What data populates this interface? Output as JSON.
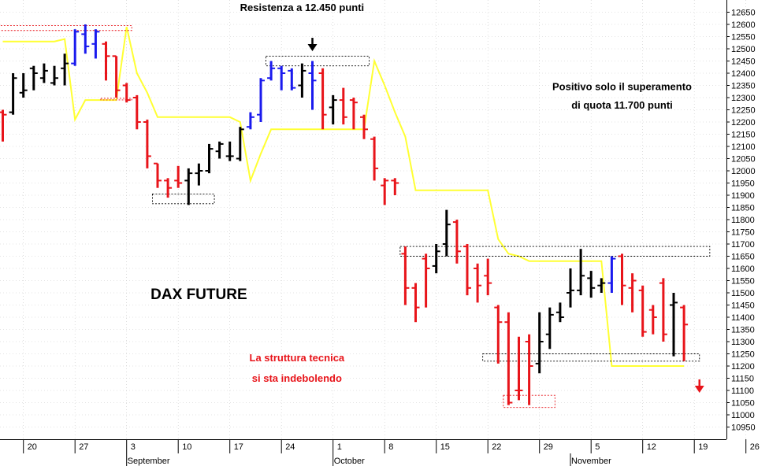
{
  "chart_data": {
    "type": "bar",
    "subtype": "ohlc",
    "title": "DAX FUTURE",
    "ylim": [
      10900,
      12700
    ],
    "y_axis_position": "right",
    "y_ticks": [
      10950,
      11000,
      11050,
      11100,
      11150,
      11200,
      11250,
      11300,
      11350,
      11400,
      11450,
      11500,
      11550,
      11600,
      11650,
      11700,
      11750,
      11800,
      11850,
      11900,
      11950,
      12000,
      12050,
      12100,
      12150,
      12200,
      12250,
      12300,
      12350,
      12400,
      12450,
      12500,
      12550,
      12600,
      12650
    ],
    "x_ticks": [
      {
        "label": "20",
        "i": 2
      },
      {
        "label": "27",
        "i": 7
      },
      {
        "label": "3",
        "i": 12
      },
      {
        "label": "10",
        "i": 17
      },
      {
        "label": "17",
        "i": 22
      },
      {
        "label": "24",
        "i": 27
      },
      {
        "label": "1",
        "i": 32
      },
      {
        "label": "8",
        "i": 37
      },
      {
        "label": "15",
        "i": 42
      },
      {
        "label": "22",
        "i": 47
      },
      {
        "label": "29",
        "i": 52
      },
      {
        "label": "5",
        "i": 57
      },
      {
        "label": "12",
        "i": 62
      },
      {
        "label": "19",
        "i": 67
      },
      {
        "label": "26",
        "i": 72
      }
    ],
    "months": [
      {
        "label": "September",
        "i": 12
      },
      {
        "label": "October",
        "i": 32
      },
      {
        "label": "November",
        "i": 55
      }
    ],
    "colors": {
      "red": "#e8141a",
      "black": "#000000",
      "blue": "#1a1aee",
      "trailing_stop": "#ffff33",
      "zone": "#000000",
      "zone_red": "#e8141a"
    },
    "bars": [
      {
        "o": 12240,
        "h": 12250,
        "l": 12120,
        "c": 12230,
        "color": "red"
      },
      {
        "o": 12240,
        "h": 12400,
        "l": 12230,
        "c": 12380,
        "color": "black"
      },
      {
        "o": 12320,
        "h": 12400,
        "l": 12300,
        "c": 12330,
        "color": "black"
      },
      {
        "o": 12420,
        "h": 12430,
        "l": 12330,
        "c": 12400,
        "color": "black"
      },
      {
        "o": 12380,
        "h": 12440,
        "l": 12360,
        "c": 12410,
        "color": "black"
      },
      {
        "o": 12360,
        "h": 12430,
        "l": 12350,
        "c": 12380,
        "color": "black"
      },
      {
        "o": 12420,
        "h": 12480,
        "l": 12350,
        "c": 12440,
        "color": "black"
      },
      {
        "o": 12440,
        "h": 12580,
        "l": 12430,
        "c": 12570,
        "color": "blue"
      },
      {
        "o": 12560,
        "h": 12600,
        "l": 12480,
        "c": 12510,
        "color": "blue"
      },
      {
        "o": 12520,
        "h": 12580,
        "l": 12460,
        "c": 12570,
        "color": "blue"
      },
      {
        "o": 12520,
        "h": 12530,
        "l": 12370,
        "c": 12470,
        "color": "red"
      },
      {
        "o": 12470,
        "h": 12470,
        "l": 12300,
        "c": 12330,
        "color": "red"
      },
      {
        "o": 12350,
        "h": 12360,
        "l": 12280,
        "c": 12290,
        "color": "red"
      },
      {
        "o": 12300,
        "h": 12310,
        "l": 12170,
        "c": 12200,
        "color": "red"
      },
      {
        "o": 12200,
        "h": 12210,
        "l": 12010,
        "c": 12060,
        "color": "red"
      },
      {
        "o": 12030,
        "h": 12030,
        "l": 11930,
        "c": 11960,
        "color": "red"
      },
      {
        "o": 11960,
        "h": 11970,
        "l": 11890,
        "c": 11930,
        "color": "red"
      },
      {
        "o": 11960,
        "h": 12020,
        "l": 11930,
        "c": 11950,
        "color": "red"
      },
      {
        "o": 11960,
        "h": 12010,
        "l": 11860,
        "c": 11990,
        "color": "black"
      },
      {
        "o": 11990,
        "h": 12030,
        "l": 11940,
        "c": 12000,
        "color": "black"
      },
      {
        "o": 12000,
        "h": 12110,
        "l": 11990,
        "c": 12090,
        "color": "black"
      },
      {
        "o": 12080,
        "h": 12120,
        "l": 12050,
        "c": 12110,
        "color": "black"
      },
      {
        "o": 12060,
        "h": 12120,
        "l": 12040,
        "c": 12060,
        "color": "black"
      },
      {
        "o": 12050,
        "h": 12180,
        "l": 12040,
        "c": 12170,
        "color": "black"
      },
      {
        "o": 12180,
        "h": 12240,
        "l": 12170,
        "c": 12220,
        "color": "blue"
      },
      {
        "o": 12230,
        "h": 12380,
        "l": 12200,
        "c": 12370,
        "color": "blue"
      },
      {
        "o": 12380,
        "h": 12450,
        "l": 12370,
        "c": 12420,
        "color": "blue"
      },
      {
        "o": 12420,
        "h": 12430,
        "l": 12330,
        "c": 12400,
        "color": "blue"
      },
      {
        "o": 12410,
        "h": 12420,
        "l": 12330,
        "c": 12340,
        "color": "blue"
      },
      {
        "o": 12350,
        "h": 12440,
        "l": 12300,
        "c": 12410,
        "color": "black"
      },
      {
        "o": 12400,
        "h": 12450,
        "l": 12250,
        "c": 12370,
        "color": "blue"
      },
      {
        "o": 12400,
        "h": 12420,
        "l": 12170,
        "c": 12230,
        "color": "red"
      },
      {
        "o": 12260,
        "h": 12310,
        "l": 12190,
        "c": 12290,
        "color": "black"
      },
      {
        "o": 12290,
        "h": 12340,
        "l": 12190,
        "c": 12220,
        "color": "red"
      },
      {
        "o": 12290,
        "h": 12300,
        "l": 12170,
        "c": 12280,
        "color": "red"
      },
      {
        "o": 12220,
        "h": 12230,
        "l": 12130,
        "c": 12170,
        "color": "red"
      },
      {
        "o": 12130,
        "h": 12140,
        "l": 11960,
        "c": 12010,
        "color": "red"
      },
      {
        "o": 11940,
        "h": 11970,
        "l": 11860,
        "c": 11960,
        "color": "red"
      },
      {
        "o": 11960,
        "h": 11970,
        "l": 11900,
        "c": 11950,
        "color": "red"
      },
      {
        "o": 11660,
        "h": 11690,
        "l": 11450,
        "c": 11520,
        "color": "red"
      },
      {
        "o": 11520,
        "h": 11540,
        "l": 11380,
        "c": 11440,
        "color": "red"
      },
      {
        "o": 11640,
        "h": 11660,
        "l": 11440,
        "c": 11600,
        "color": "red"
      },
      {
        "o": 11610,
        "h": 11700,
        "l": 11580,
        "c": 11670,
        "color": "black"
      },
      {
        "o": 11700,
        "h": 11840,
        "l": 11650,
        "c": 11780,
        "color": "black"
      },
      {
        "o": 11790,
        "h": 11800,
        "l": 11620,
        "c": 11670,
        "color": "red"
      },
      {
        "o": 11690,
        "h": 11700,
        "l": 11490,
        "c": 11520,
        "color": "red"
      },
      {
        "o": 11600,
        "h": 11620,
        "l": 11460,
        "c": 11530,
        "color": "red"
      },
      {
        "o": 11570,
        "h": 11640,
        "l": 11490,
        "c": 11540,
        "color": "red"
      },
      {
        "o": 11440,
        "h": 11450,
        "l": 11210,
        "c": 11380,
        "color": "red"
      },
      {
        "o": 11380,
        "h": 11420,
        "l": 11040,
        "c": 11050,
        "color": "red"
      },
      {
        "o": 11100,
        "h": 11320,
        "l": 11060,
        "c": 11100,
        "color": "red"
      },
      {
        "o": 11300,
        "h": 11330,
        "l": 11040,
        "c": 11200,
        "color": "red"
      },
      {
        "o": 11210,
        "h": 11420,
        "l": 11170,
        "c": 11300,
        "color": "black"
      },
      {
        "o": 11330,
        "h": 11440,
        "l": 11270,
        "c": 11410,
        "color": "black"
      },
      {
        "o": 11420,
        "h": 11460,
        "l": 11380,
        "c": 11400,
        "color": "black"
      },
      {
        "o": 11500,
        "h": 11600,
        "l": 11440,
        "c": 11510,
        "color": "black"
      },
      {
        "o": 11510,
        "h": 11680,
        "l": 11490,
        "c": 11570,
        "color": "black"
      },
      {
        "o": 11560,
        "h": 11590,
        "l": 11480,
        "c": 11520,
        "color": "black"
      },
      {
        "o": 11530,
        "h": 11560,
        "l": 11500,
        "c": 11540,
        "color": "black"
      },
      {
        "o": 11540,
        "h": 11650,
        "l": 11500,
        "c": 11640,
        "color": "blue"
      },
      {
        "o": 11650,
        "h": 11660,
        "l": 11450,
        "c": 11530,
        "color": "red"
      },
      {
        "o": 11520,
        "h": 11580,
        "l": 11420,
        "c": 11550,
        "color": "red"
      },
      {
        "o": 11510,
        "h": 11530,
        "l": 11320,
        "c": 11340,
        "color": "red"
      },
      {
        "o": 11430,
        "h": 11450,
        "l": 11330,
        "c": 11400,
        "color": "red"
      },
      {
        "o": 11540,
        "h": 11560,
        "l": 11300,
        "c": 11330,
        "color": "red"
      },
      {
        "o": 11450,
        "h": 11500,
        "l": 11240,
        "c": 11460,
        "color": "black"
      },
      {
        "o": 11440,
        "h": 11450,
        "l": 11220,
        "c": 11370,
        "color": "red"
      }
    ],
    "trailing_stop": [
      [
        0,
        12530
      ],
      [
        1,
        12530
      ],
      [
        2,
        12530
      ],
      [
        3,
        12530
      ],
      [
        4,
        12530
      ],
      [
        5,
        12530
      ],
      [
        6,
        12540
      ],
      [
        7,
        12210
      ],
      [
        8,
        12290
      ],
      [
        9,
        12290
      ],
      [
        10,
        12290
      ],
      [
        11,
        12290
      ],
      [
        12,
        12590
      ],
      [
        13,
        12400
      ],
      [
        14,
        12320
      ],
      [
        15,
        12220
      ],
      [
        16,
        12220
      ],
      [
        17,
        12220
      ],
      [
        18,
        12220
      ],
      [
        19,
        12220
      ],
      [
        20,
        12220
      ],
      [
        21,
        12220
      ],
      [
        22,
        12220
      ],
      [
        23,
        12200
      ],
      [
        24,
        11960
      ],
      [
        25,
        12070
      ],
      [
        26,
        12170
      ],
      [
        27,
        12170
      ],
      [
        28,
        12170
      ],
      [
        29,
        12170
      ],
      [
        30,
        12170
      ],
      [
        31,
        12170
      ],
      [
        32,
        12170
      ],
      [
        33,
        12170
      ],
      [
        34,
        12170
      ],
      [
        35,
        12170
      ],
      [
        36,
        12450
      ],
      [
        37,
        12350
      ],
      [
        38,
        12240
      ],
      [
        39,
        12140
      ],
      [
        40,
        11920
      ],
      [
        41,
        11920
      ],
      [
        42,
        11920
      ],
      [
        43,
        11920
      ],
      [
        44,
        11920
      ],
      [
        45,
        11920
      ],
      [
        46,
        11920
      ],
      [
        47,
        11920
      ],
      [
        48,
        11720
      ],
      [
        49,
        11660
      ],
      [
        50,
        11650
      ],
      [
        51,
        11630
      ],
      [
        52,
        11630
      ],
      [
        53,
        11630
      ],
      [
        54,
        11630
      ],
      [
        55,
        11630
      ],
      [
        56,
        11630
      ],
      [
        57,
        11630
      ],
      [
        58,
        11630
      ],
      [
        59,
        11200
      ],
      [
        60,
        11200
      ],
      [
        61,
        11200
      ],
      [
        62,
        11200
      ],
      [
        63,
        11200
      ],
      [
        64,
        11200
      ],
      [
        65,
        11200
      ],
      [
        66,
        11200
      ]
    ],
    "zones": [
      {
        "i0": -0.5,
        "i1": 12.5,
        "y0": 12575,
        "y1": 12595,
        "color": "red"
      },
      {
        "i0": 9.5,
        "i1": 12.5,
        "y0": 12293,
        "y1": 12297,
        "color": "red"
      },
      {
        "i0": 14.5,
        "i1": 20.5,
        "y0": 11865,
        "y1": 11905,
        "color": "black"
      },
      {
        "i0": 25.5,
        "i1": 35.5,
        "y0": 12430,
        "y1": 12470,
        "color": "black"
      },
      {
        "i0": 38.5,
        "i1": 68.5,
        "y0": 11650,
        "y1": 11690,
        "color": "black"
      },
      {
        "i0": 46.5,
        "i1": 67.5,
        "y0": 11220,
        "y1": 11250,
        "color": "black"
      },
      {
        "i0": 48.5,
        "i1": 53.5,
        "y0": 11030,
        "y1": 11080,
        "color": "red"
      }
    ],
    "annotations": [
      {
        "text": "Resistenza a 12.450 punti",
        "i": 29,
        "y": 12655,
        "color": "black"
      },
      {
        "text": "Positivo solo il superamento",
        "i": 60,
        "y": 12330,
        "color": "black"
      },
      {
        "text": "di quota 11.700 punti",
        "i": 60,
        "y": 12255,
        "color": "black"
      },
      {
        "text": "La struttura tecnica",
        "i": 28.5,
        "y": 11220,
        "color": "red"
      },
      {
        "text": "si sta indebolendo",
        "i": 28.5,
        "y": 11135,
        "color": "red"
      }
    ],
    "arrows": [
      {
        "i": 30.0,
        "y": 12545,
        "color": "black",
        "direction": "down"
      },
      {
        "i": 67.5,
        "y": 11145,
        "color": "red",
        "direction": "down"
      }
    ],
    "label": {
      "text": "DAX FUTURE",
      "i": 19,
      "y": 11475
    }
  }
}
